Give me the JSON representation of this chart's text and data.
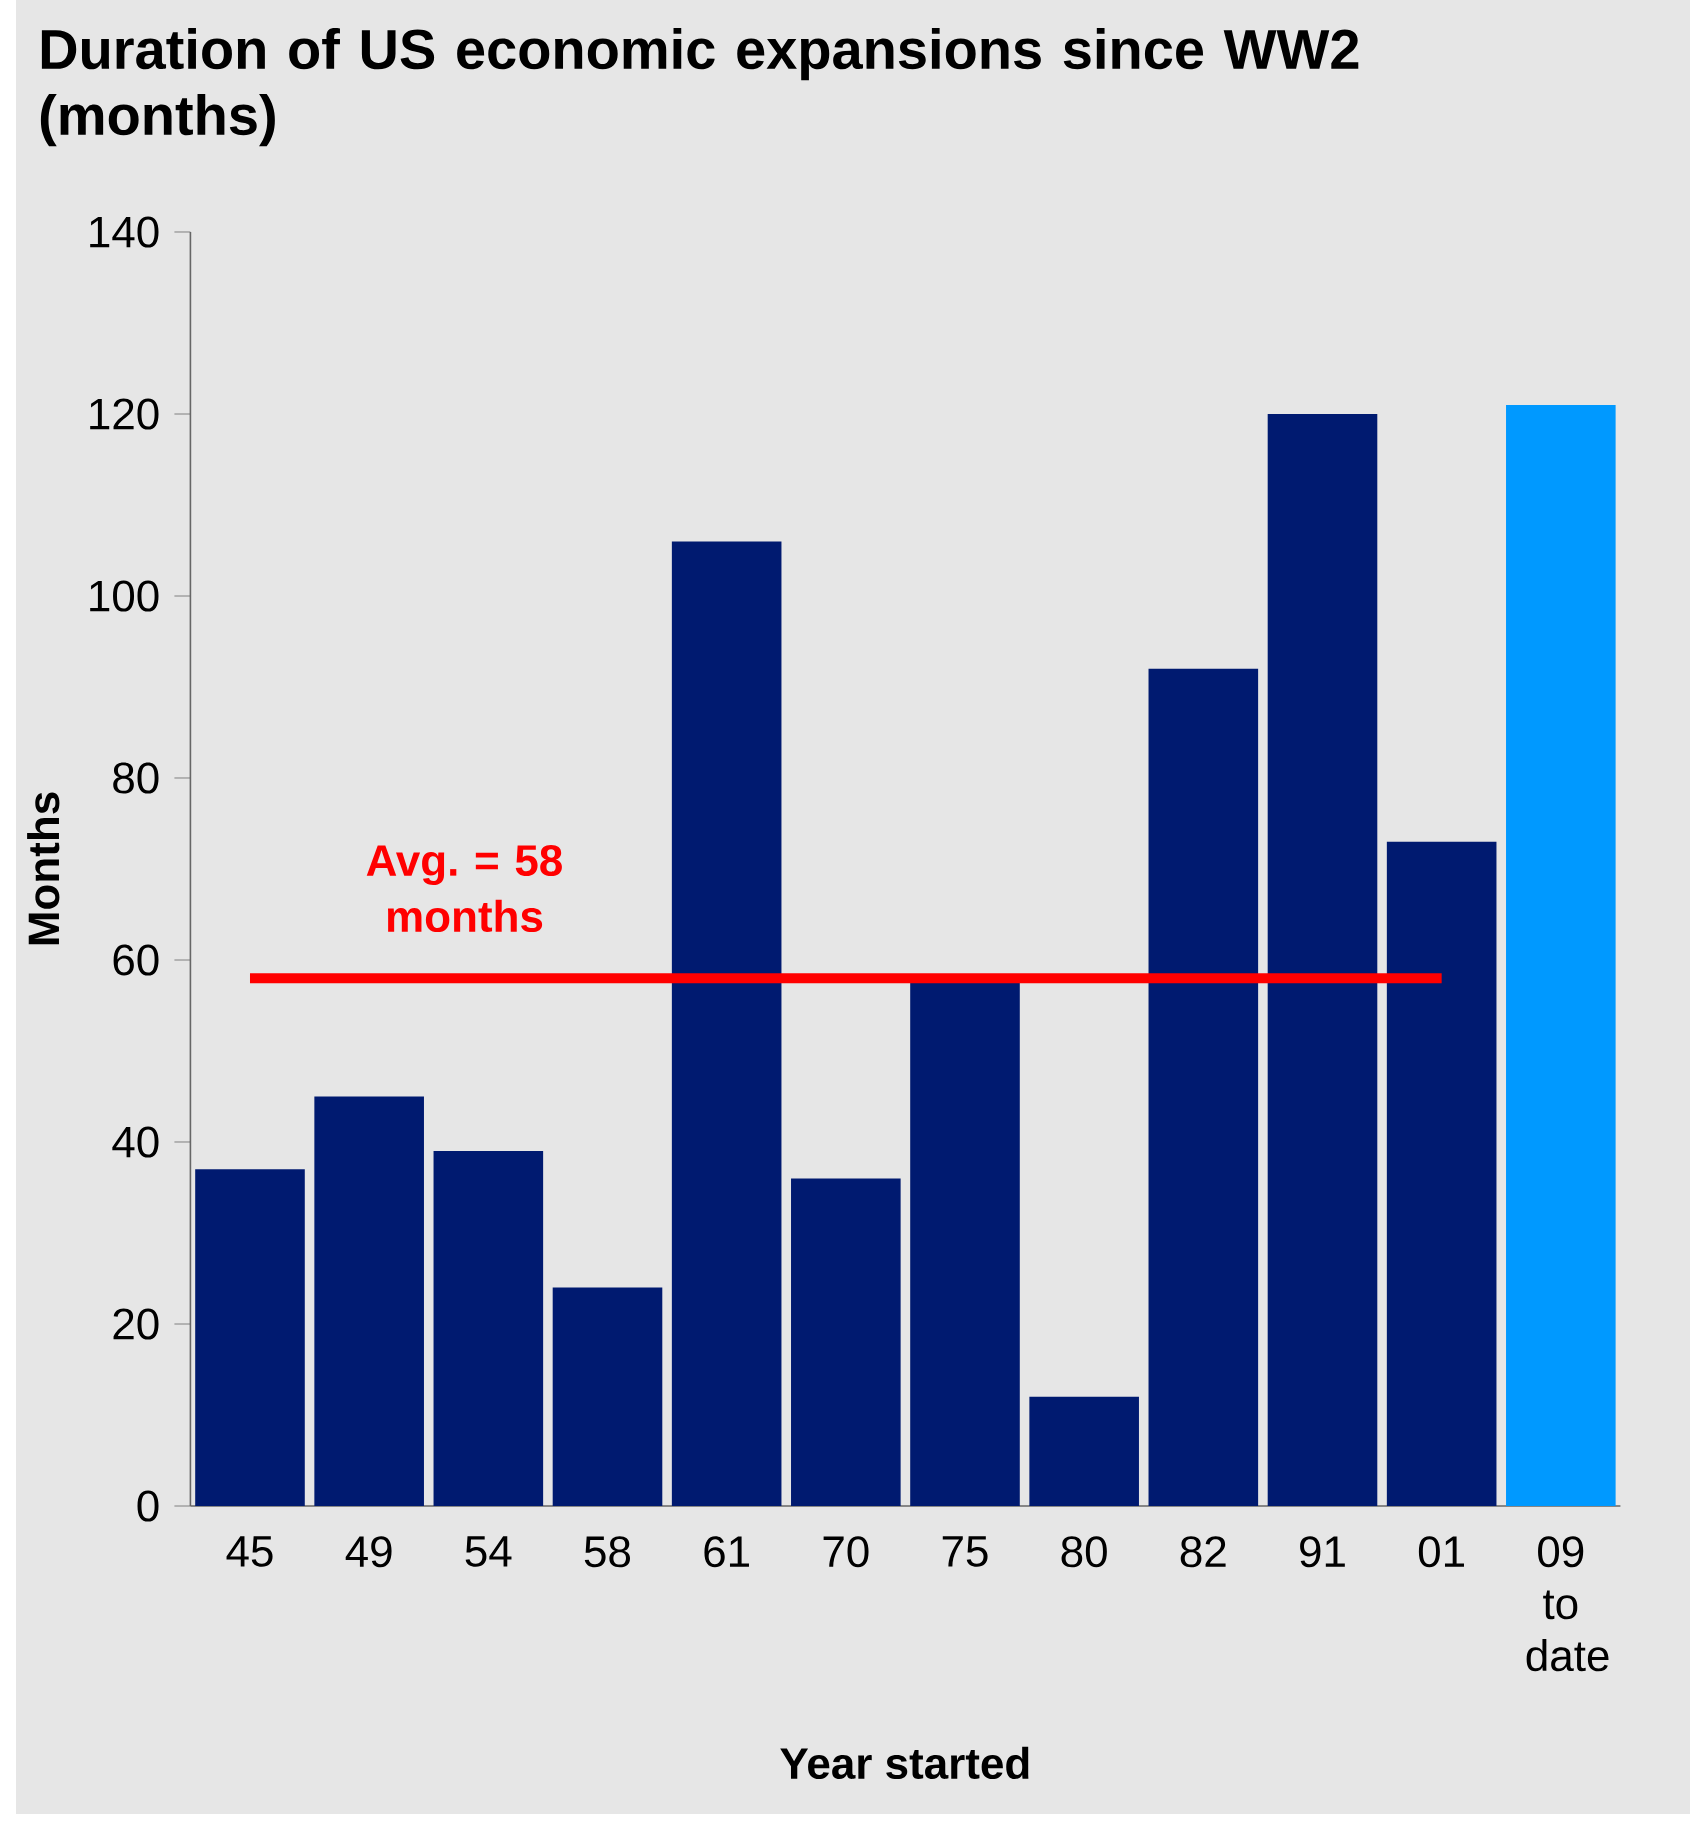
{
  "chart_data": {
    "type": "bar",
    "title": "Duration of US economic expansions since WW2 (months)",
    "xlabel": "Year started",
    "ylabel": "Months",
    "categories": [
      "45",
      "49",
      "54",
      "58",
      "61",
      "70",
      "75",
      "80",
      "82",
      "91",
      "01",
      "09 to date"
    ],
    "values": [
      37,
      45,
      39,
      24,
      106,
      36,
      58,
      12,
      92,
      120,
      73,
      121
    ],
    "colors": [
      "#001a70",
      "#001a70",
      "#001a70",
      "#001a70",
      "#001a70",
      "#001a70",
      "#001a70",
      "#001a70",
      "#001a70",
      "#001a70",
      "#001a70",
      "#0099ff"
    ],
    "ylim": [
      0,
      140
    ],
    "yticks": [
      0,
      20,
      40,
      60,
      80,
      100,
      120,
      140
    ],
    "grid": false,
    "ref_lines": [
      {
        "axis": "y",
        "value": 58,
        "label": "Avg. = 58 months",
        "color": "#ff0000"
      }
    ]
  }
}
